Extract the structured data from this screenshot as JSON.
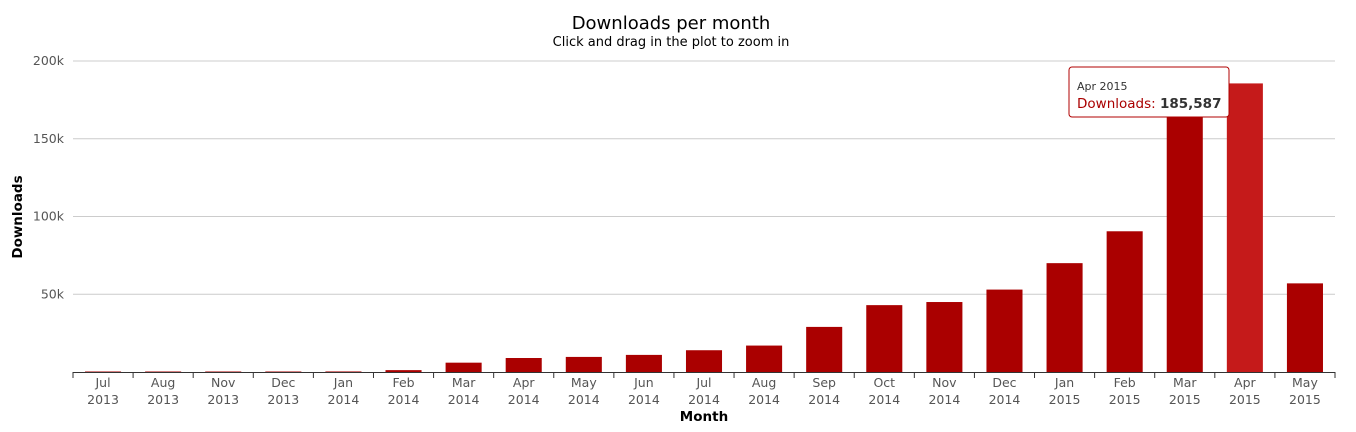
{
  "chart_data": {
    "type": "bar",
    "title": "Downloads per month",
    "subtitle": "Click and drag in the plot to zoom in",
    "xlabel": "Month",
    "ylabel": "Downloads",
    "ylim": [
      0,
      200000
    ],
    "yticks": [
      "50k",
      "100k",
      "150k",
      "200k"
    ],
    "ytick_values": [
      50000,
      100000,
      150000,
      200000
    ],
    "grid": true,
    "categories": [
      "Jul 2013",
      "Aug 2013",
      "Nov 2013",
      "Dec 2013",
      "Jan 2014",
      "Feb 2014",
      "Mar 2014",
      "Apr 2014",
      "May 2014",
      "Jun 2014",
      "Jul 2014",
      "Aug 2014",
      "Sep 2014",
      "Oct 2014",
      "Nov 2014",
      "Dec 2014",
      "Jan 2015",
      "Feb 2015",
      "Mar 2015",
      "Apr 2015",
      "May 2015"
    ],
    "series": [
      {
        "values": [
          30,
          60,
          200,
          250,
          350,
          1200,
          6000,
          9000,
          9700,
          11000,
          14000,
          17000,
          29000,
          43000,
          45000,
          53000,
          70000,
          90500,
          167000,
          185587,
          57000
        ]
      }
    ],
    "colors": {
      "bar": "#aa0000",
      "bar_hover": "#c51a1a",
      "tooltip_border": "#b00000",
      "tooltip_series": "#aa0000"
    },
    "tooltip": {
      "header": "Apr 2015",
      "series_label": "Downloads",
      "value": "185,587",
      "category_index": 19
    }
  }
}
